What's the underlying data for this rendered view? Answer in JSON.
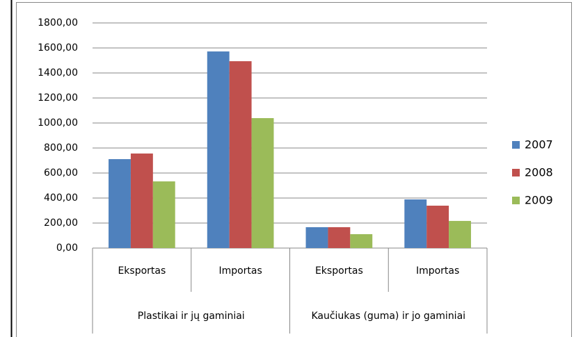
{
  "chart_data": {
    "type": "bar",
    "groups": [
      {
        "name": "Plastikai ir jų gaminiai",
        "categories": [
          "Eksportas",
          "Importas"
        ]
      },
      {
        "name": "Kaučiukas (guma) ir jo gaminiai",
        "categories": [
          "Eksportas",
          "Importas"
        ]
      }
    ],
    "series": [
      {
        "name": "2007",
        "color": "#4f81bd",
        "values": [
          711,
          1572,
          167,
          389
        ]
      },
      {
        "name": "2008",
        "color": "#c0504d",
        "values": [
          756,
          1494,
          167,
          339
        ]
      },
      {
        "name": "2009",
        "color": "#9bbb59",
        "values": [
          533,
          1039,
          111,
          217
        ]
      }
    ],
    "ylim": [
      0,
      1800
    ],
    "yticks": [
      {
        "value": 0,
        "label": "0,00"
      },
      {
        "value": 200,
        "label": "200,00"
      },
      {
        "value": 400,
        "label": "400,00"
      },
      {
        "value": 600,
        "label": "600,00"
      },
      {
        "value": 800,
        "label": "800,00"
      },
      {
        "value": 1000,
        "label": "1000,00"
      },
      {
        "value": 1200,
        "label": "1200,00"
      },
      {
        "value": 1400,
        "label": "1400,00"
      },
      {
        "value": 1600,
        "label": "1600,00"
      },
      {
        "value": 1800,
        "label": "1800,00"
      }
    ],
    "grid": true,
    "legend": "right"
  }
}
